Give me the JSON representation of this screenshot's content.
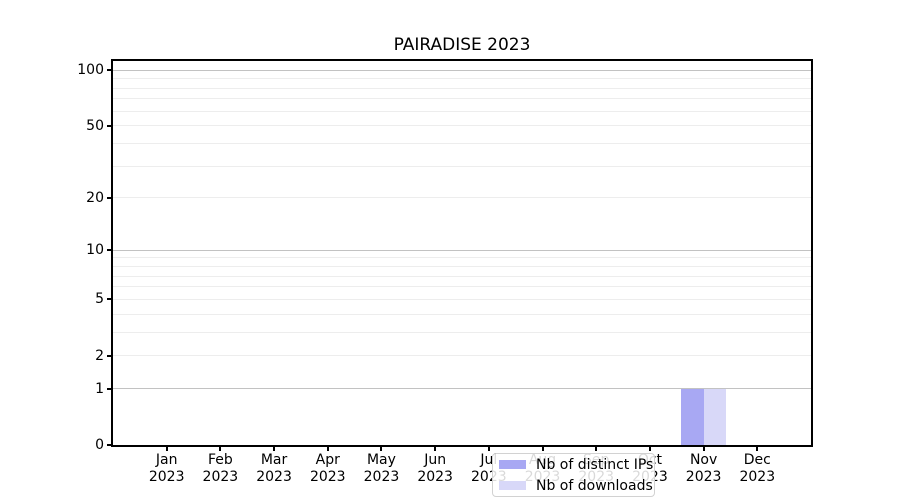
{
  "chart_data": {
    "type": "bar",
    "title": "PAIRADISE 2023",
    "categories": [
      {
        "month": "Jan",
        "year": "2023"
      },
      {
        "month": "Feb",
        "year": "2023"
      },
      {
        "month": "Mar",
        "year": "2023"
      },
      {
        "month": "Apr",
        "year": "2023"
      },
      {
        "month": "May",
        "year": "2023"
      },
      {
        "month": "Jun",
        "year": "2023"
      },
      {
        "month": "Jul",
        "year": "2023"
      },
      {
        "month": "Aug",
        "year": "2023"
      },
      {
        "month": "Sep",
        "year": "2023"
      },
      {
        "month": "Oct",
        "year": "2023"
      },
      {
        "month": "Nov",
        "year": "2023"
      },
      {
        "month": "Dec",
        "year": "2023"
      }
    ],
    "series": [
      {
        "name": "Nb of distinct IPs",
        "color": "#a8a8f3",
        "values": [
          0,
          0,
          0,
          0,
          0,
          0,
          0,
          0,
          0,
          0,
          1,
          0
        ]
      },
      {
        "name": "Nb of downloads",
        "color": "#d8d8f8",
        "values": [
          0,
          0,
          0,
          0,
          0,
          0,
          0,
          0,
          0,
          0,
          1,
          0
        ]
      }
    ],
    "xlabel": "",
    "ylabel": "",
    "yscale": "symlog(log10(1+y))",
    "ylim": [
      0,
      112
    ],
    "yticks": [
      0,
      1,
      2,
      5,
      10,
      20,
      50,
      100
    ],
    "gridlines": {
      "major": [
        1,
        10,
        100
      ],
      "minor": [
        2,
        3,
        4,
        5,
        6,
        7,
        8,
        9,
        20,
        30,
        40,
        50,
        60,
        70,
        80,
        90
      ]
    },
    "grid": true,
    "legend_position": "lower center",
    "colors": {
      "grid_major": "#c2c2c2",
      "grid_minor": "#ededed",
      "spine": "#000000",
      "text": "#000000",
      "legend_border": "#d2d2d2"
    }
  }
}
